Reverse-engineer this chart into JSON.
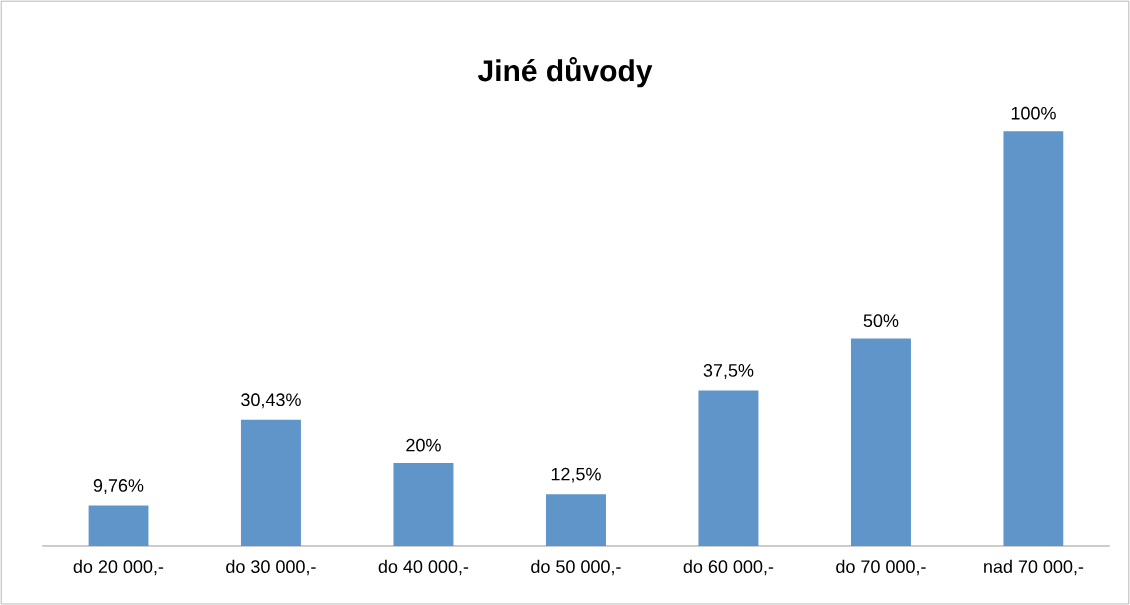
{
  "chart_data": {
    "type": "bar",
    "title": "Jiné důvody",
    "categories": [
      "do 20 000,-",
      "do 30 000,-",
      "do 40 000,-",
      "do 50 000,-",
      "do 60 000,-",
      "do 70 000,-",
      "nad 70 000,-"
    ],
    "values": [
      9.76,
      30.43,
      20,
      12.5,
      37.5,
      50,
      100
    ],
    "value_labels": [
      "9,76%",
      "30,43%",
      "20%",
      "12,5%",
      "37,5%",
      "50%",
      "100%"
    ],
    "color": "#5f95c9"
  }
}
